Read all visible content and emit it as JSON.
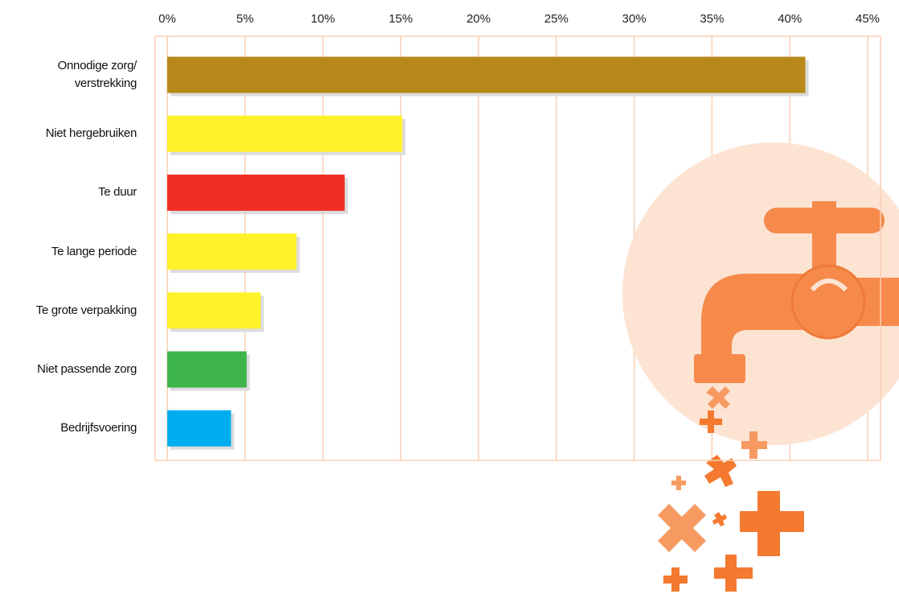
{
  "chart_data": {
    "type": "bar",
    "categories": [
      "Onnodige zorg/ verstrekking",
      "Niet hergebruiken",
      "Te duur",
      "Te lange periode",
      "Te grote verpakking",
      "Niet passende zorg",
      "Bedrijfsvoering"
    ],
    "values": [
      41,
      15.1,
      11.4,
      8.3,
      6,
      5.1,
      4.1
    ],
    "colors": [
      "#b8891a",
      "#fff22a",
      "#ee2e24",
      "#fff22a",
      "#fff22a",
      "#3db54a",
      "#00aeef"
    ],
    "xlim": [
      0,
      45
    ],
    "xticks": [
      {
        "value": 0,
        "label": "0%"
      },
      {
        "value": 5,
        "label": "5%"
      },
      {
        "value": 10,
        "label": "10%"
      },
      {
        "value": 15,
        "label": "15%"
      },
      {
        "value": 20,
        "label": "20%"
      },
      {
        "value": 25,
        "label": "25%"
      },
      {
        "value": 30,
        "label": "30%"
      },
      {
        "value": 35,
        "label": "35%"
      },
      {
        "value": 40,
        "label": "40%"
      },
      {
        "value": 45,
        "label": "45%"
      }
    ],
    "grid": true
  }
}
